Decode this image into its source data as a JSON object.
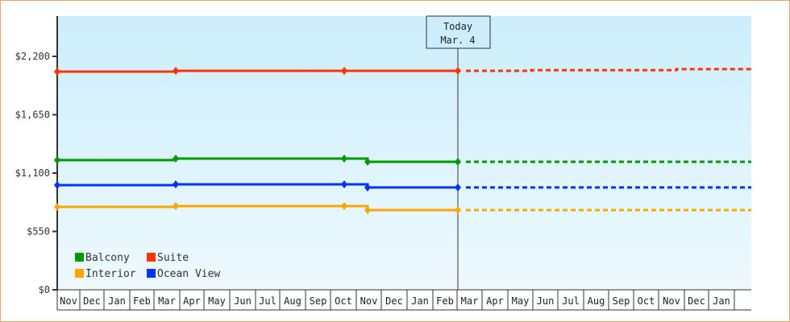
{
  "chart_data": {
    "type": "line",
    "title": "",
    "xlabel": "",
    "ylabel": "",
    "ylim": [
      0,
      2200
    ],
    "yticks": [
      {
        "value": 0,
        "label": "$0"
      },
      {
        "value": 550,
        "label": "$550"
      },
      {
        "value": 1100,
        "label": "$1,100"
      },
      {
        "value": 1650,
        "label": "$1,650"
      },
      {
        "value": 2200,
        "label": "$2,200"
      }
    ],
    "x_months": [
      "Nov",
      "Dec",
      "Jan",
      "Feb",
      "Mar",
      "Apr",
      "May",
      "Jun",
      "Jul",
      "Aug",
      "Sep",
      "Oct",
      "Nov",
      "Dec",
      "Jan",
      "Feb",
      "Mar",
      "Apr",
      "May",
      "Jun",
      "Jul",
      "Aug",
      "Sep",
      "Oct",
      "Nov",
      "Dec",
      "Jan"
    ],
    "today_marker": {
      "line1": "Today",
      "line2": "Mar. 4"
    },
    "legend": [
      {
        "name": "Balcony",
        "color": "#009900"
      },
      {
        "name": "Suite",
        "color": "#ff3300"
      },
      {
        "name": "Interior",
        "color": "#ffa500"
      },
      {
        "name": "Ocean View",
        "color": "#0033ff"
      }
    ],
    "series": [
      {
        "name": "Suite",
        "color": "#ff3300",
        "points": [
          {
            "x": "Nov",
            "v": 2056
          },
          {
            "x": "Apr",
            "v": 2063
          },
          {
            "x": "Oct",
            "v": 2063
          },
          {
            "x": "Mar (today)",
            "v": 2063
          }
        ],
        "projection": [
          {
            "x": "Mar (today)",
            "v": 2063
          },
          {
            "x": "Jun",
            "v": 2070
          },
          {
            "x": "Nov",
            "v": 2080
          },
          {
            "x": "end",
            "v": 2080
          }
        ]
      },
      {
        "name": "Balcony",
        "color": "#009900",
        "points": [
          {
            "x": "Nov",
            "v": 1222
          },
          {
            "x": "Apr",
            "v": 1237
          },
          {
            "x": "Oct",
            "v": 1237
          },
          {
            "x": "Nov",
            "v": 1206
          },
          {
            "x": "Mar (today)",
            "v": 1206
          }
        ],
        "projection": [
          {
            "x": "Mar (today)",
            "v": 1206
          },
          {
            "x": "end",
            "v": 1206
          }
        ]
      },
      {
        "name": "Ocean View",
        "color": "#0033ff",
        "points": [
          {
            "x": "Nov",
            "v": 986
          },
          {
            "x": "Apr",
            "v": 994
          },
          {
            "x": "Oct",
            "v": 994
          },
          {
            "x": "Nov",
            "v": 964
          },
          {
            "x": "Mar (today)",
            "v": 964
          }
        ],
        "projection": [
          {
            "x": "Mar (today)",
            "v": 964
          },
          {
            "x": "end",
            "v": 964
          }
        ]
      },
      {
        "name": "Interior",
        "color": "#ffa500",
        "points": [
          {
            "x": "Nov",
            "v": 781
          },
          {
            "x": "Apr",
            "v": 789
          },
          {
            "x": "Oct",
            "v": 789
          },
          {
            "x": "Nov",
            "v": 751
          },
          {
            "x": "Mar (today)",
            "v": 751
          }
        ],
        "projection": [
          {
            "x": "Mar (today)",
            "v": 751
          },
          {
            "x": "end",
            "v": 751
          }
        ]
      }
    ]
  }
}
